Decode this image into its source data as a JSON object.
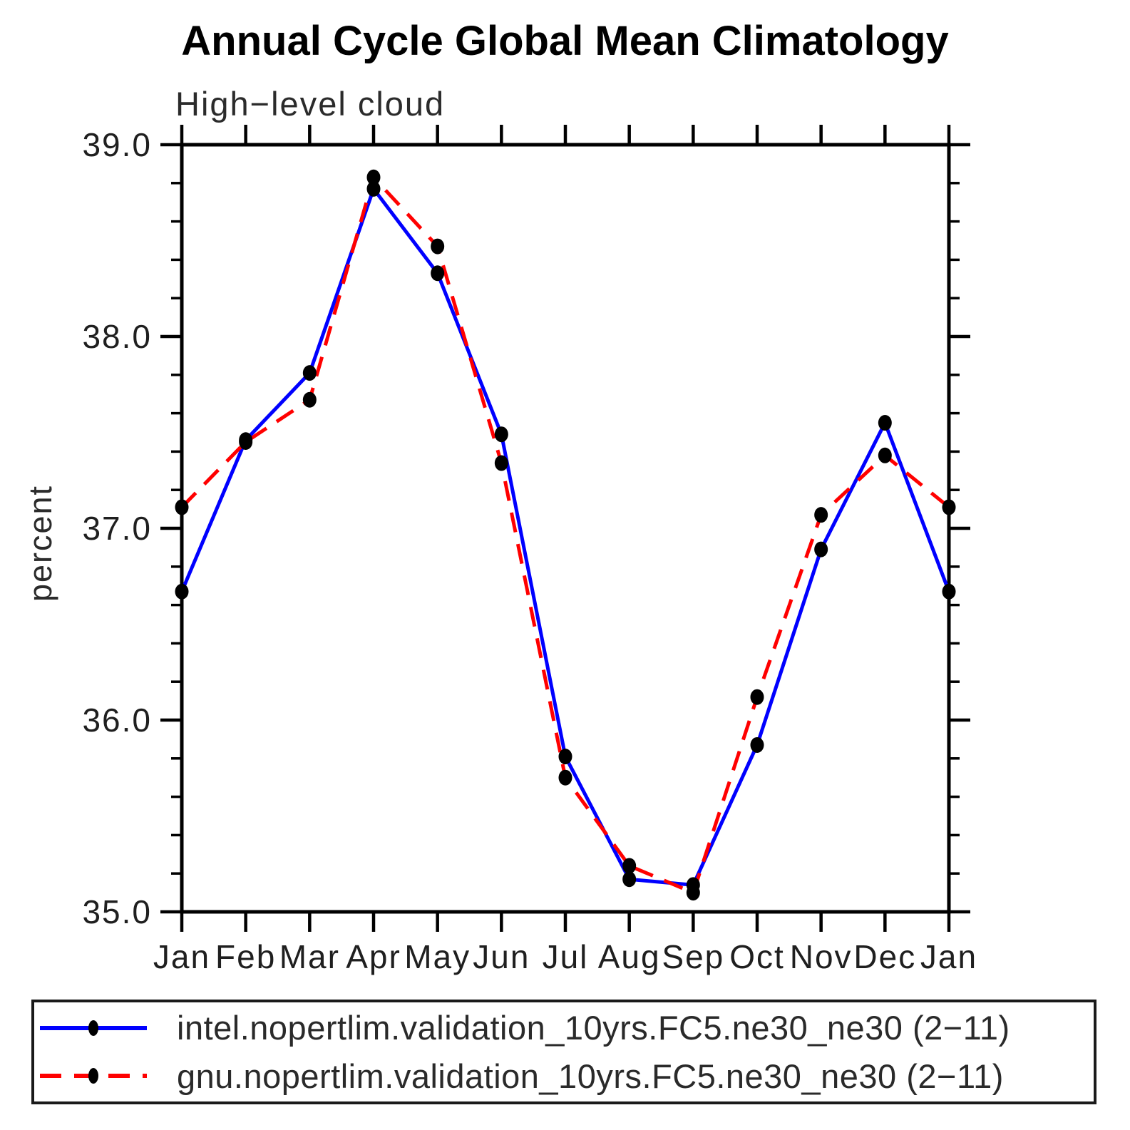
{
  "chart_data": {
    "type": "line",
    "title": "Annual Cycle Global Mean Climatology",
    "subtitle": "High−level cloud",
    "ylabel": "percent",
    "ylim": [
      35.0,
      39.0
    ],
    "y_major_step": 1.0,
    "y_minor_step": 0.2,
    "y_major_ticks": [
      "39.0",
      "38.0",
      "37.0",
      "36.0",
      "35.0"
    ],
    "grid": false,
    "legend_position": "bottom",
    "categories": [
      "Jan",
      "Feb",
      "Mar",
      "Apr",
      "May",
      "Jun",
      "Jul",
      "Aug",
      "Sep",
      "Oct",
      "Nov",
      "Dec",
      "Jan"
    ],
    "series": [
      {
        "name": "intel.nopertlim.validation_10yrs.FC5.ne30_ne30 (2−11)",
        "color": "#0000ff",
        "line_style": "solid",
        "marker": "black-dot",
        "values": [
          36.67,
          37.46,
          37.81,
          38.77,
          38.33,
          37.49,
          35.81,
          35.17,
          35.14,
          35.87,
          36.89,
          37.55,
          36.67
        ]
      },
      {
        "name": "gnu.nopertlim.validation_10yrs.FC5.ne30_ne30 (2−11)",
        "color": "#ff0000",
        "line_style": "dashed",
        "marker": "black-dot",
        "values": [
          37.11,
          37.45,
          37.67,
          38.83,
          38.47,
          37.34,
          35.7,
          35.24,
          35.1,
          36.12,
          37.07,
          37.38,
          37.11
        ]
      }
    ]
  }
}
